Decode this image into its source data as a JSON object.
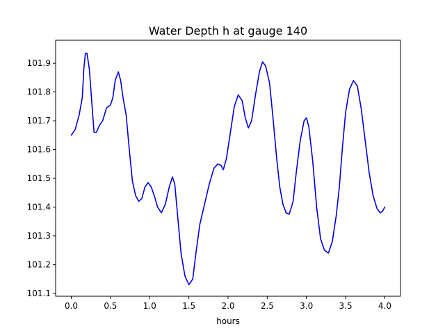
{
  "chart_data": {
    "type": "line",
    "title": "Water Depth h at gauge 140",
    "xlabel": "hours",
    "ylabel": "",
    "xlim": [
      -0.2,
      4.2
    ],
    "ylim": [
      101.09,
      101.98
    ],
    "xticks": [
      0.0,
      0.5,
      1.0,
      1.5,
      2.0,
      2.5,
      3.0,
      3.5,
      4.0
    ],
    "xtick_labels": [
      "0.0",
      "0.5",
      "1.0",
      "1.5",
      "2.0",
      "2.5",
      "3.0",
      "3.5",
      "4.0"
    ],
    "yticks": [
      101.1,
      101.2,
      101.3,
      101.4,
      101.5,
      101.6,
      101.7,
      101.8,
      101.9
    ],
    "ytick_labels": [
      "101.1",
      "101.2",
      "101.3",
      "101.4",
      "101.5",
      "101.6",
      "101.7",
      "101.8",
      "101.9"
    ],
    "grid": false,
    "series": [
      {
        "name": "",
        "color": "#0000dd",
        "points": [
          [
            0.0,
            101.65
          ],
          [
            0.05,
            101.67
          ],
          [
            0.1,
            101.72
          ],
          [
            0.14,
            101.78
          ],
          [
            0.16,
            101.88
          ],
          [
            0.18,
            101.935
          ],
          [
            0.2,
            101.935
          ],
          [
            0.23,
            101.88
          ],
          [
            0.26,
            101.77
          ],
          [
            0.29,
            101.66
          ],
          [
            0.32,
            101.66
          ],
          [
            0.36,
            101.685
          ],
          [
            0.4,
            101.7
          ],
          [
            0.45,
            101.745
          ],
          [
            0.5,
            101.755
          ],
          [
            0.53,
            101.78
          ],
          [
            0.56,
            101.84
          ],
          [
            0.6,
            101.87
          ],
          [
            0.63,
            101.84
          ],
          [
            0.66,
            101.78
          ],
          [
            0.7,
            101.72
          ],
          [
            0.74,
            101.6
          ],
          [
            0.78,
            101.49
          ],
          [
            0.82,
            101.44
          ],
          [
            0.86,
            101.42
          ],
          [
            0.9,
            101.43
          ],
          [
            0.94,
            101.47
          ],
          [
            0.98,
            101.485
          ],
          [
            1.02,
            101.47
          ],
          [
            1.07,
            101.43
          ],
          [
            1.1,
            101.4
          ],
          [
            1.15,
            101.38
          ],
          [
            1.2,
            101.41
          ],
          [
            1.25,
            101.47
          ],
          [
            1.29,
            101.505
          ],
          [
            1.32,
            101.48
          ],
          [
            1.36,
            101.36
          ],
          [
            1.4,
            101.24
          ],
          [
            1.45,
            101.16
          ],
          [
            1.5,
            101.13
          ],
          [
            1.55,
            101.15
          ],
          [
            1.59,
            101.24
          ],
          [
            1.64,
            101.34
          ],
          [
            1.7,
            101.41
          ],
          [
            1.76,
            101.48
          ],
          [
            1.82,
            101.535
          ],
          [
            1.87,
            101.55
          ],
          [
            1.91,
            101.545
          ],
          [
            1.94,
            101.53
          ],
          [
            1.98,
            101.57
          ],
          [
            2.03,
            101.66
          ],
          [
            2.08,
            101.75
          ],
          [
            2.13,
            101.79
          ],
          [
            2.18,
            101.77
          ],
          [
            2.22,
            101.71
          ],
          [
            2.26,
            101.675
          ],
          [
            2.3,
            101.7
          ],
          [
            2.35,
            101.79
          ],
          [
            2.4,
            101.87
          ],
          [
            2.44,
            101.905
          ],
          [
            2.48,
            101.89
          ],
          [
            2.53,
            101.83
          ],
          [
            2.57,
            101.72
          ],
          [
            2.62,
            101.57
          ],
          [
            2.66,
            101.47
          ],
          [
            2.7,
            101.41
          ],
          [
            2.74,
            101.38
          ],
          [
            2.78,
            101.375
          ],
          [
            2.83,
            101.42
          ],
          [
            2.87,
            101.52
          ],
          [
            2.92,
            101.63
          ],
          [
            2.97,
            101.7
          ],
          [
            3.0,
            101.71
          ],
          [
            3.03,
            101.68
          ],
          [
            3.08,
            101.56
          ],
          [
            3.13,
            101.4
          ],
          [
            3.18,
            101.29
          ],
          [
            3.23,
            101.25
          ],
          [
            3.28,
            101.24
          ],
          [
            3.33,
            101.28
          ],
          [
            3.38,
            101.37
          ],
          [
            3.42,
            101.47
          ],
          [
            3.46,
            101.61
          ],
          [
            3.5,
            101.73
          ],
          [
            3.55,
            101.81
          ],
          [
            3.6,
            101.84
          ],
          [
            3.65,
            101.82
          ],
          [
            3.7,
            101.74
          ],
          [
            3.75,
            101.63
          ],
          [
            3.8,
            101.52
          ],
          [
            3.85,
            101.44
          ],
          [
            3.9,
            101.395
          ],
          [
            3.94,
            101.38
          ],
          [
            3.97,
            101.385
          ],
          [
            4.0,
            101.4
          ]
        ]
      }
    ]
  }
}
